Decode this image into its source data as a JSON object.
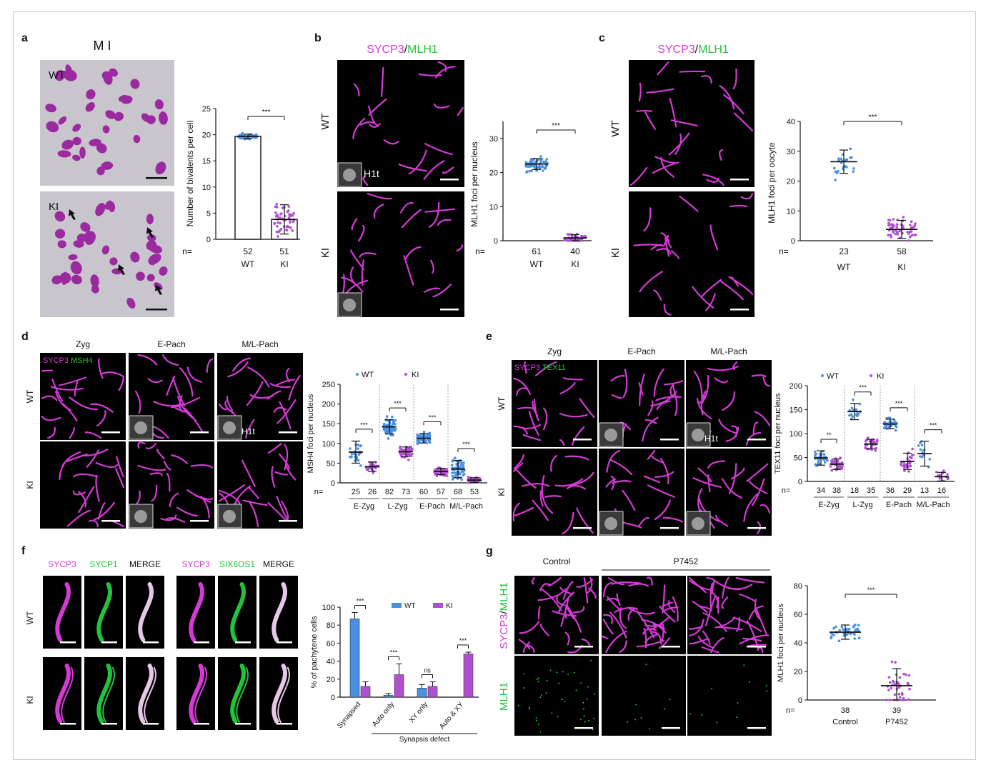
{
  "panel_letters": [
    "a",
    "b",
    "c",
    "d",
    "e",
    "f",
    "g"
  ],
  "colors": {
    "magenta": "#d63ad6",
    "green": "#22c33a",
    "wt_blue": "#4a90e2",
    "ki_purple": "#b14fd1",
    "stain_purple": "#9b2aa0",
    "dark_bg": "#000000"
  },
  "panel_a": {
    "stage_title": "M I",
    "row_labels": [
      "WT",
      "KI"
    ],
    "ylabel": "Number of bivalents per cell",
    "sig": "***",
    "n_prefix": "n=",
    "n_values": [
      "52",
      "51"
    ],
    "groups": [
      "WT",
      "KI"
    ]
  },
  "panel_b": {
    "title_magenta": "SYCP3",
    "title_sep": "/",
    "title_green": "MLH1",
    "row_labels": [
      "WT",
      "KI"
    ],
    "inset_label": "H1t",
    "ylabel": "MLH1 foci per nucleus",
    "sig": "***",
    "n_prefix": "n=",
    "n_values": [
      "61",
      "40"
    ],
    "groups": [
      "WT",
      "KI"
    ]
  },
  "panel_c": {
    "title_magenta": "SYCP3",
    "title_sep": "/",
    "title_green": "MLH1",
    "row_labels": [
      "WT",
      "KI"
    ],
    "ylabel": "MLH1 foci per oocyte",
    "sig": "***",
    "n_prefix": "n=",
    "n_values": [
      "23",
      "58"
    ],
    "groups": [
      "WT",
      "KI"
    ]
  },
  "panel_d": {
    "col_labels": [
      "Zyg",
      "E-Pach",
      "M/L-Pach"
    ],
    "row_labels": [
      "WT",
      "KI"
    ],
    "stain_magenta": "SYCP3",
    "stain_green": "MSH4",
    "inset_label": "H1t",
    "ylabel": "MSH4 foci per nucleus",
    "legend": [
      "WT",
      "KI"
    ],
    "sigs": [
      "***",
      "***",
      "***",
      "***"
    ],
    "n_prefix": "n=",
    "n_values": [
      "25",
      "26",
      "82",
      "73",
      "60",
      "57",
      "68",
      "53"
    ],
    "groups": [
      "E-Zyg",
      "L-Zyg",
      "E-Pach",
      "M/L-Pach"
    ]
  },
  "panel_e": {
    "col_labels": [
      "Zyg",
      "E-Pach",
      "M/L-Pach"
    ],
    "row_labels": [
      "WT",
      "KI"
    ],
    "stain_magenta": "SYCP3",
    "stain_green": "TEX11",
    "inset_label": "H1t",
    "ylabel": "TEX11 foci per nucleus",
    "legend": [
      "WT",
      "KI"
    ],
    "sigs": [
      "**",
      "***",
      "***",
      "***"
    ],
    "n_prefix": "n=",
    "n_values": [
      "34",
      "38",
      "18",
      "35",
      "36",
      "29",
      "13",
      "16"
    ],
    "groups": [
      "E-Zyg",
      "L-Zyg",
      "E-Pach",
      "M/L-Pach"
    ]
  },
  "panel_f": {
    "col_labels": [
      "SYCP3",
      "SYCP1",
      "MERGE",
      "SYCP3",
      "SIX6OS1",
      "MERGE"
    ],
    "row_labels": [
      "WT",
      "KI"
    ],
    "ylabel": "% of pachytene cells",
    "legend": [
      "WT",
      "KI"
    ],
    "sigs": [
      "***",
      "***",
      "ns",
      "***"
    ],
    "categories": [
      "Synapsed",
      "Auto only",
      "XY only",
      "Auto & XY"
    ],
    "bracket_label": "Synapsis defect"
  },
  "panel_g": {
    "col_labels": [
      "Control",
      "P7452"
    ],
    "row_label_top_magenta": "SYCP3",
    "row_label_top_sep": "/",
    "row_label_top_green": "MLH1",
    "row_label_bottom": "MLH1",
    "ylabel": "MLH1 foci per nucleus",
    "sig": "***",
    "n_prefix": "n=",
    "n_values": [
      "38",
      "39"
    ],
    "groups": [
      "Control",
      "P7452"
    ]
  },
  "chart_data": [
    {
      "id": "a",
      "type": "bar",
      "categories": [
        "WT",
        "KI"
      ],
      "values": [
        19.7,
        3.8
      ],
      "error": [
        0.4,
        2.8
      ],
      "ylabel": "Number of bivalents per cell",
      "ylim": [
        0,
        25
      ],
      "yticks": [
        0,
        5,
        10,
        15,
        20,
        25
      ]
    },
    {
      "id": "b",
      "type": "scatter",
      "categories": [
        "WT",
        "KI"
      ],
      "means": [
        22.5,
        0.8
      ],
      "sd": [
        1.6,
        1.0
      ],
      "ylabel": "MLH1 foci per nucleus",
      "ylim": [
        0,
        35
      ],
      "yticks": [
        0,
        10,
        20,
        30
      ]
    },
    {
      "id": "c",
      "type": "scatter",
      "categories": [
        "WT",
        "KI"
      ],
      "means": [
        26.5,
        3.8
      ],
      "sd": [
        3.9,
        3.0
      ],
      "ylabel": "MLH1 foci per oocyte",
      "ylim": [
        0,
        40
      ],
      "yticks": [
        0,
        10,
        20,
        30,
        40
      ]
    },
    {
      "id": "d",
      "type": "scatter",
      "categories": [
        "E-Zyg",
        "L-Zyg",
        "E-Pach",
        "M/L-Pach"
      ],
      "series": [
        {
          "name": "WT",
          "means": [
            78,
            142,
            113,
            35
          ],
          "sd": [
            28,
            18,
            12,
            22
          ]
        },
        {
          "name": "KI",
          "means": [
            41,
            79,
            29,
            7
          ],
          "sd": [
            12,
            12,
            8,
            6
          ]
        }
      ],
      "ylabel": "MSH4 foci per nucleus",
      "ylim": [
        0,
        250
      ],
      "yticks": [
        0,
        50,
        100,
        150,
        200,
        250
      ]
    },
    {
      "id": "e",
      "type": "scatter",
      "categories": [
        "E-Zyg",
        "L-Zyg",
        "E-Pach",
        "M/L-Pach"
      ],
      "series": [
        {
          "name": "WT",
          "means": [
            49,
            146,
            120,
            58
          ],
          "sd": [
            15,
            17,
            10,
            26
          ]
        },
        {
          "name": "KI",
          "means": [
            36,
            78,
            42,
            10
          ],
          "sd": [
            11,
            10,
            17,
            9
          ]
        }
      ],
      "ylabel": "TEX11 foci per nucleus",
      "ylim": [
        0,
        200
      ],
      "yticks": [
        0,
        50,
        100,
        150,
        200
      ]
    },
    {
      "id": "f",
      "type": "bar",
      "categories": [
        "Synapsed",
        "Auto only",
        "XY only",
        "Auto & XY"
      ],
      "series": [
        {
          "name": "WT",
          "values": [
            87,
            2,
            10,
            0
          ],
          "error": [
            7,
            2,
            4,
            0
          ]
        },
        {
          "name": "KI",
          "values": [
            12,
            25,
            12,
            48
          ],
          "error": [
            5,
            12,
            5,
            2
          ]
        }
      ],
      "ylabel": "% of pachytene cells",
      "ylim": [
        0,
        100
      ],
      "yticks": [
        0,
        20,
        40,
        60,
        80,
        100
      ]
    },
    {
      "id": "g",
      "type": "scatter",
      "categories": [
        "Control",
        "P7452"
      ],
      "means": [
        47.5,
        10
      ],
      "sd": [
        5,
        12
      ],
      "ylabel": "MLH1 foci per nucleus",
      "ylim": [
        0,
        80
      ],
      "yticks": [
        0,
        20,
        40,
        60,
        80
      ]
    }
  ]
}
